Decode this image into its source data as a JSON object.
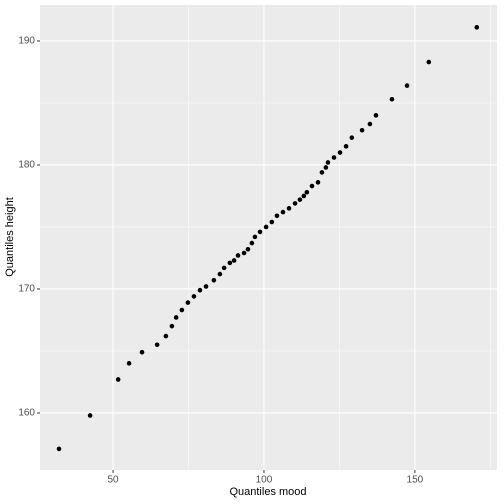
{
  "chart_data": {
    "type": "scatter",
    "x_label": "Quantiles mood",
    "y_label": "Quantiles height",
    "x": [
      32.1,
      42.4,
      51.7,
      55.3,
      59.6,
      64.6,
      67.5,
      69.5,
      70.9,
      72.8,
      74.8,
      76.8,
      78.8,
      80.8,
      83.4,
      85.4,
      86.8,
      88.7,
      90.1,
      91.4,
      93.4,
      94.7,
      96.0,
      97.0,
      98.7,
      100.7,
      102.6,
      104.3,
      106.3,
      108.3,
      110.3,
      111.9,
      113.2,
      114.2,
      115.9,
      117.9,
      119.2,
      120.5,
      121.2,
      123.2,
      125.2,
      127.2,
      129.1,
      132.5,
      135.1,
      137.1,
      142.4,
      147.4,
      154.6,
      170.5
    ],
    "values": [
      157.1,
      159.8,
      162.7,
      164.0,
      164.9,
      165.5,
      166.2,
      167.0,
      167.7,
      168.3,
      168.9,
      169.4,
      169.9,
      170.2,
      170.7,
      171.2,
      171.7,
      172.1,
      172.3,
      172.7,
      172.9,
      173.2,
      173.7,
      174.2,
      174.6,
      175.0,
      175.4,
      175.9,
      176.2,
      176.5,
      176.9,
      177.2,
      177.5,
      177.8,
      178.3,
      178.6,
      179.4,
      179.8,
      180.2,
      180.6,
      181.0,
      181.5,
      182.2,
      182.8,
      183.3,
      184.0,
      185.3,
      186.4,
      188.3,
      191.1
    ],
    "color": "#000000",
    "xlim": [
      25.8,
      177.2
    ],
    "xticks": [
      50,
      100,
      150
    ],
    "xminor": [
      75,
      125,
      175
    ],
    "ylim": [
      155.4,
      192.9
    ],
    "yticks": [
      160,
      170,
      180,
      190
    ],
    "yminor": [
      165,
      175,
      185
    ],
    "grid": true
  }
}
